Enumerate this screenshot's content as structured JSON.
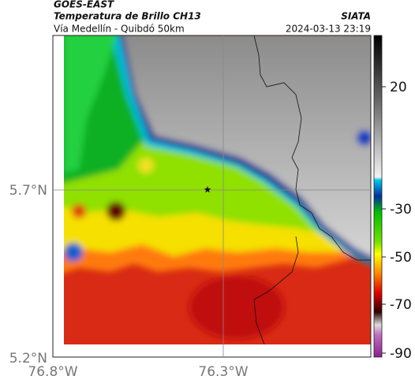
{
  "header": {
    "title": "GOES-EAST",
    "subtitle": "Temperatura de Brillo CH13",
    "location": "Vía Medellín - Quibdó 50km",
    "source": "SIATA",
    "datetime": "2024-03-13 23:19"
  },
  "axes": {
    "lat_labels": [
      "5.7°N",
      "5.2°N"
    ],
    "lon_labels": [
      "76.8°W",
      "76.3°W"
    ]
  },
  "colorbar": {
    "ticks": [
      20,
      -30,
      -50,
      -70,
      -90
    ]
  }
}
